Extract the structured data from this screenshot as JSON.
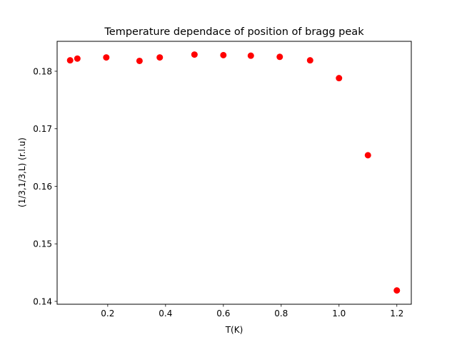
{
  "chart_data": {
    "type": "scatter",
    "title": "Temperature dependace of position of bragg peak",
    "xlabel": "T(K)",
    "ylabel": "(1/3,1/3,L) (r.l.u)",
    "xlim": [
      0.025,
      1.25
    ],
    "ylim": [
      0.1395,
      0.1852
    ],
    "xticks": [
      0.2,
      0.4,
      0.6,
      0.8,
      1.0,
      1.2
    ],
    "xtick_labels": [
      "0.2",
      "0.4",
      "0.6",
      "0.8",
      "1.0",
      "1.2"
    ],
    "yticks": [
      0.14,
      0.15,
      0.16,
      0.17,
      0.18
    ],
    "ytick_labels": [
      "0.14",
      "0.15",
      "0.16",
      "0.17",
      "0.18"
    ],
    "grid": false,
    "marker_color": "#ff0000",
    "series": [
      {
        "x": [
          0.07,
          0.095,
          0.195,
          0.31,
          0.38,
          0.5,
          0.6,
          0.695,
          0.795,
          0.9,
          1.0,
          1.1,
          1.2
        ],
        "y": [
          0.1819,
          0.1822,
          0.1824,
          0.1818,
          0.1824,
          0.1829,
          0.1828,
          0.1827,
          0.1825,
          0.1819,
          0.1788,
          0.1654,
          0.1419
        ]
      }
    ]
  }
}
